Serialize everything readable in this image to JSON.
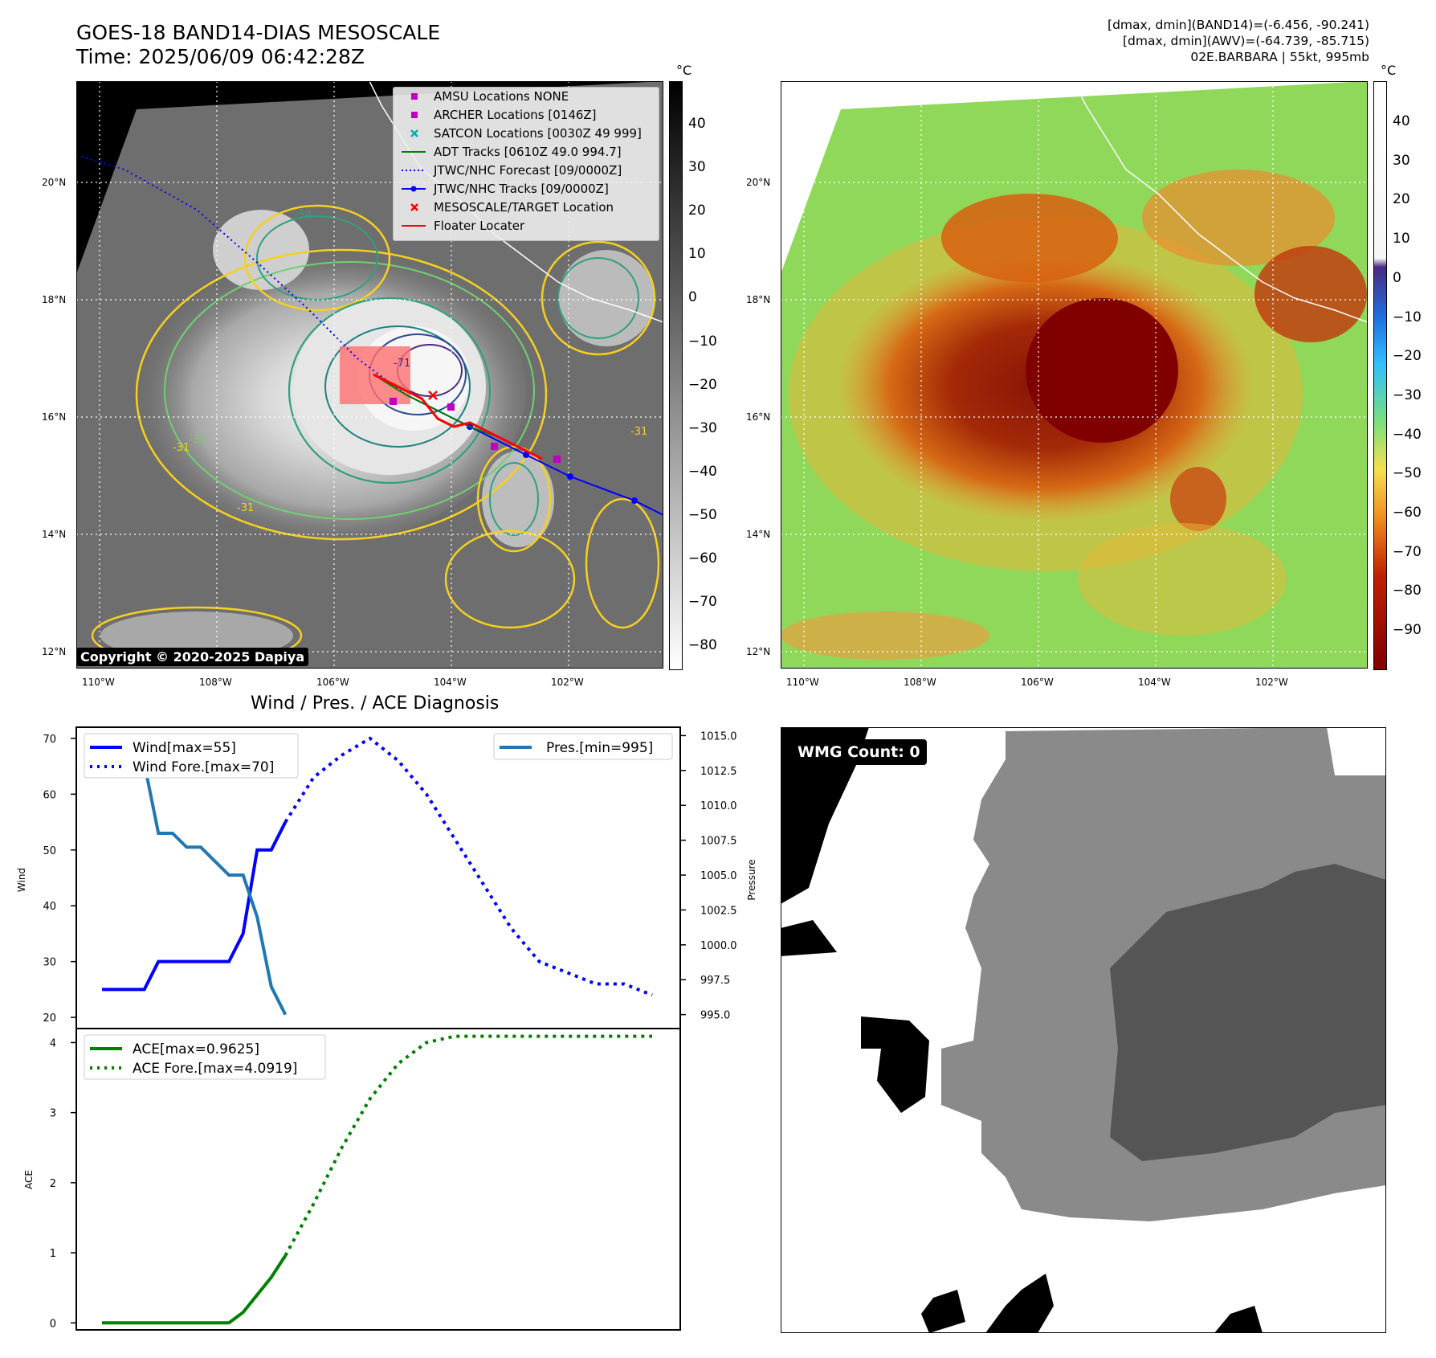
{
  "header": {
    "title_line1": "GOES-18 BAND14-DIAS MESOSCALE",
    "title_line2": "Time: 2025/06/09 06:42:28Z",
    "info_line1": "[dmax, dmin](BAND14)=(-6.456, -90.241)",
    "info_line2": "[dmax, dmin](AWV)=(-64.739, -85.715)",
    "info_line3": "02E.BARBARA | 55kt, 995mb"
  },
  "map": {
    "lon_labels": [
      "110°W",
      "108°W",
      "106°W",
      "104°W",
      "102°W"
    ],
    "lat_labels": [
      "20°N",
      "18°N",
      "16°N",
      "14°N",
      "12°N"
    ],
    "copyright": "Copyright © 2020-2025 Dapiya",
    "contour_labels": [
      "-54",
      "-31",
      "-31",
      "-31",
      "-71",
      "-31"
    ],
    "legend": [
      {
        "label": "AMSU Locations NONE",
        "color": "#c000c0",
        "kind": "square"
      },
      {
        "label": "ARCHER Locations [0146Z]",
        "color": "#c000c0",
        "kind": "square"
      },
      {
        "label": "SATCON Locations [0030Z 49 999]",
        "color": "#00b0b0",
        "kind": "x"
      },
      {
        "label": "ADT Tracks [0610Z 49.0 994.7]",
        "color": "#008000",
        "kind": "line"
      },
      {
        "label": "JTWC/NHC Forecast [09/0000Z]",
        "color": "#0000ff",
        "kind": "dotted"
      },
      {
        "label": "JTWC/NHC Tracks [09/0000Z]",
        "color": "#0000ff",
        "kind": "line-dot"
      },
      {
        "label": "MESOSCALE/TARGET Location",
        "color": "#ff0000",
        "kind": "x"
      },
      {
        "label": "Floater Locater",
        "color": "#ff0000",
        "kind": "line"
      }
    ],
    "cb1_unit": "°C",
    "cb1_ticks": [
      "40",
      "30",
      "20",
      "10",
      "0",
      "−10",
      "−20",
      "−30",
      "−40",
      "−50",
      "−60",
      "−70",
      "−80"
    ],
    "cb2_unit": "°C",
    "cb2_ticks": [
      "40",
      "30",
      "20",
      "10",
      "0",
      "−10",
      "−20",
      "−30",
      "−40",
      "−50",
      "−60",
      "−70",
      "−80",
      "−90"
    ]
  },
  "diag": {
    "title": "Wind / Pres. / ACE Diagnosis",
    "wind_axis_label": "Wind",
    "pres_axis_label": "Pressure",
    "ace_axis_label": "ACE",
    "wind_ticks": [
      "70",
      "60",
      "50",
      "40",
      "30",
      "20"
    ],
    "pres_ticks": [
      "1015.0",
      "1012.5",
      "1010.0",
      "1007.5",
      "1005.0",
      "1002.5",
      "1000.0",
      "997.5",
      "995.0"
    ],
    "ace_ticks": [
      "4",
      "3",
      "2",
      "1",
      "0"
    ],
    "legend_wind": "Wind[max=55]",
    "legend_wind_fore": "Wind Fore.[max=70]",
    "legend_pres": "Pres.[min=995]",
    "legend_ace": "ACE[max=0.9625]",
    "legend_ace_fore": "ACE Fore.[max=4.0919]"
  },
  "wmg": {
    "label": "WMG Count: 0"
  },
  "chart_data": [
    {
      "type": "line",
      "title": "Wind / Pres. / ACE Diagnosis",
      "ylabel": "Wind",
      "ylim": [
        18,
        72
      ],
      "series": [
        {
          "name": "Wind[max=55]",
          "color": "#0000ff",
          "style": "solid",
          "x": [
            0,
            1,
            2,
            3,
            4,
            5,
            6,
            7,
            8,
            9,
            10,
            11,
            12,
            13
          ],
          "y": [
            25,
            25,
            25,
            25,
            30,
            30,
            30,
            30,
            30,
            30,
            35,
            50,
            50,
            55
          ]
        },
        {
          "name": "Wind Fore.[max=70]",
          "color": "#0000ff",
          "style": "dotted",
          "x": [
            13,
            15,
            17,
            19,
            21,
            23,
            25,
            27,
            29,
            31,
            33,
            35,
            37,
            39
          ],
          "y": [
            55,
            63,
            67,
            70,
            66,
            60,
            52,
            44,
            36,
            30,
            28,
            26,
            26,
            24
          ]
        }
      ]
    },
    {
      "type": "line",
      "ylabel": "Pressure",
      "ylim": [
        994.0,
        1015.6
      ],
      "series": [
        {
          "name": "Pres.[min=995]",
          "color": "#1f77b4",
          "style": "solid",
          "x": [
            0,
            1,
            2,
            3,
            4,
            5,
            6,
            7,
            8,
            9,
            10,
            11,
            12,
            13
          ],
          "y": [
            1015,
            1015,
            1015,
            1013,
            1008,
            1008,
            1007,
            1007,
            1006,
            1005,
            1005,
            1002,
            997,
            995
          ]
        }
      ]
    },
    {
      "type": "line",
      "ylabel": "ACE",
      "ylim": [
        -0.1,
        4.2
      ],
      "series": [
        {
          "name": "ACE[max=0.9625]",
          "color": "#008000",
          "style": "solid",
          "x": [
            0,
            1,
            2,
            3,
            4,
            5,
            6,
            7,
            8,
            9,
            10,
            11,
            12,
            13
          ],
          "y": [
            0,
            0,
            0,
            0,
            0,
            0,
            0,
            0,
            0,
            0,
            0.15,
            0.4,
            0.65,
            0.96
          ]
        },
        {
          "name": "ACE Fore.[max=4.0919]",
          "color": "#008000",
          "style": "dotted",
          "x": [
            13,
            15,
            17,
            19,
            21,
            23,
            25,
            27,
            29,
            31,
            33,
            35,
            37,
            39
          ],
          "y": [
            0.96,
            1.7,
            2.5,
            3.2,
            3.7,
            4.0,
            4.09,
            4.09,
            4.09,
            4.09,
            4.09,
            4.09,
            4.09,
            4.09
          ]
        }
      ]
    }
  ]
}
